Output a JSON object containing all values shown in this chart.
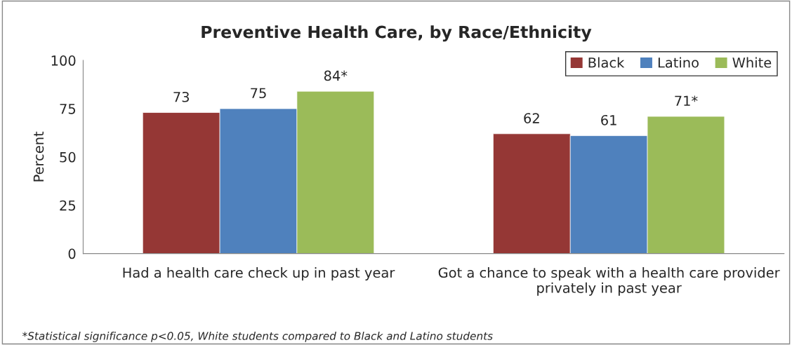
{
  "chart_data": {
    "type": "bar",
    "title": "Preventive Health Care, by Race/Ethnicity",
    "ylabel": "Percent",
    "categories": [
      "Had a health care check up in past year",
      "Got a chance to speak with a health care provider privately in past year"
    ],
    "series": [
      {
        "name": "Black",
        "color": "#953735",
        "values": [
          73,
          62
        ],
        "value_labels": [
          "73",
          "62"
        ]
      },
      {
        "name": "Latino",
        "color": "#4f81bd",
        "values": [
          75,
          61
        ],
        "value_labels": [
          "75",
          "61"
        ]
      },
      {
        "name": "White",
        "color": "#9bbb59",
        "values": [
          84,
          71
        ],
        "value_labels": [
          "84*",
          "71*"
        ]
      }
    ],
    "ylim": [
      0,
      100
    ],
    "yticks": [
      0,
      25,
      50,
      75,
      100
    ],
    "grid": false,
    "legend": "top right",
    "annotations": [
      "*Statistical significance p<0.05, White students compared to Black and Latino students"
    ]
  }
}
